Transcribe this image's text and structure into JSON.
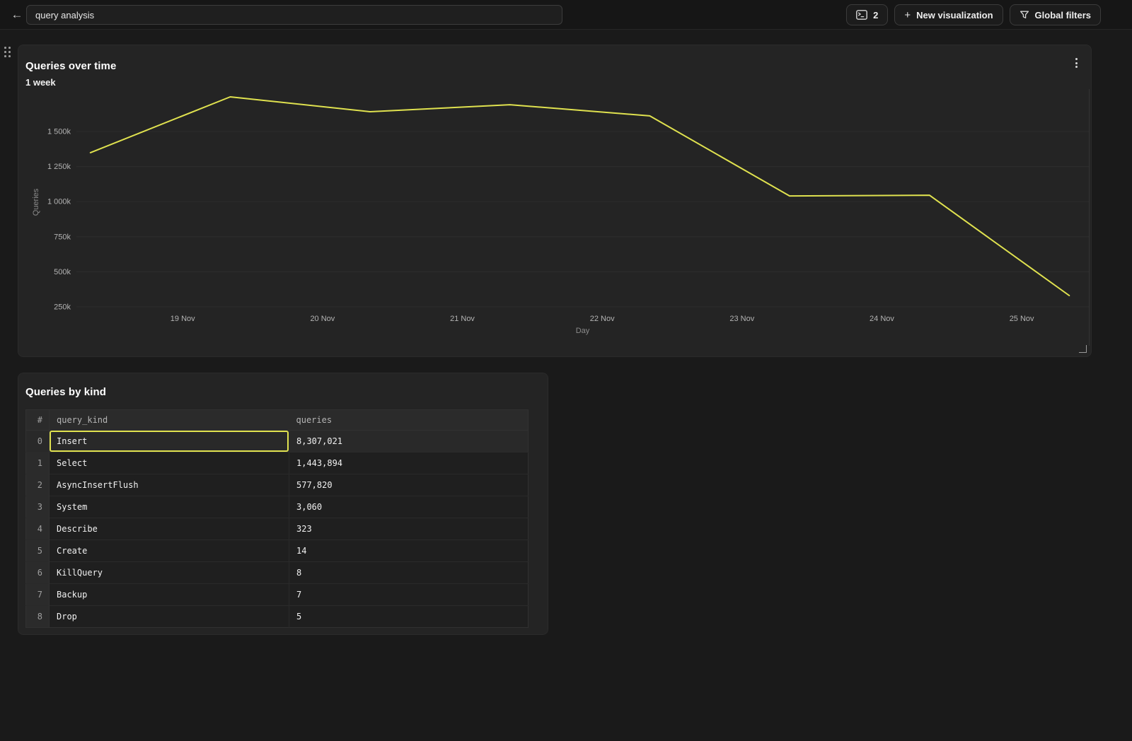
{
  "topbar": {
    "back_icon": "←",
    "title_input": {
      "value": "query analysis"
    },
    "tabs_button": {
      "count": "2",
      "icon": "terminal-window"
    },
    "new_visualization_button": {
      "icon": "+",
      "label": "New visualization"
    },
    "global_filters_button": {
      "icon": "funnel",
      "label": "Global filters"
    }
  },
  "chart_panel": {
    "title": "Queries over time",
    "subtitle": "1 week",
    "menu_icon": "kebab-vertical",
    "resize_handle": "bottom-right-corner"
  },
  "chart_data": {
    "type": "line",
    "title": "Queries over time",
    "subtitle": "1 week",
    "xlabel": "Day",
    "ylabel": "Queries",
    "grid": "horizontal-only",
    "legend": "none",
    "line_color": "#e0e24f",
    "x_unit": "day offset, 19 Nov = 1",
    "x_range": [
      0.24,
      7.48
    ],
    "y_range": [
      215000,
      1777000
    ],
    "x_ticks": [
      {
        "pos": 1,
        "label": "19 Nov"
      },
      {
        "pos": 2,
        "label": "20 Nov"
      },
      {
        "pos": 3,
        "label": "21 Nov"
      },
      {
        "pos": 4,
        "label": "22 Nov"
      },
      {
        "pos": 5,
        "label": "23 Nov"
      },
      {
        "pos": 6,
        "label": "24 Nov"
      },
      {
        "pos": 7,
        "label": "25 Nov"
      }
    ],
    "y_ticks": [
      {
        "value": 250000,
        "label": "250k"
      },
      {
        "value": 500000,
        "label": "500k"
      },
      {
        "value": 750000,
        "label": "750k"
      },
      {
        "value": 1000000,
        "label": "1 000k"
      },
      {
        "value": 1250000,
        "label": "1 250k"
      },
      {
        "value": 1500000,
        "label": "1 500k"
      }
    ],
    "series": [
      {
        "name": "Queries",
        "color": "#e0e24f",
        "x": [
          0.34,
          1.34,
          2.34,
          3.34,
          4.34,
          5.34,
          6.34,
          7.34
        ],
        "values": [
          1349000,
          1747000,
          1641000,
          1691000,
          1611000,
          1041000,
          1046000,
          331000
        ]
      }
    ]
  },
  "table_panel": {
    "title": "Queries by kind",
    "columns": [
      "#",
      "query_kind",
      "queries"
    ],
    "rows": [
      {
        "index": "0",
        "query_kind": "Insert",
        "queries": "8,307,021",
        "selected": true
      },
      {
        "index": "1",
        "query_kind": "Select",
        "queries": "1,443,894",
        "selected": false
      },
      {
        "index": "2",
        "query_kind": "AsyncInsertFlush",
        "queries": "577,820",
        "selected": false
      },
      {
        "index": "3",
        "query_kind": "System",
        "queries": "3,060",
        "selected": false
      },
      {
        "index": "4",
        "query_kind": "Describe",
        "queries": "323",
        "selected": false
      },
      {
        "index": "5",
        "query_kind": "Create",
        "queries": "14",
        "selected": false
      },
      {
        "index": "6",
        "query_kind": "KillQuery",
        "queries": "8",
        "selected": false
      },
      {
        "index": "7",
        "query_kind": "Backup",
        "queries": "7",
        "selected": false
      },
      {
        "index": "8",
        "query_kind": "Drop",
        "queries": "5",
        "selected": false
      }
    ]
  },
  "colors": {
    "accent": "#e0e24f",
    "panel_bg": "#242424",
    "page_bg": "#1a1a1a",
    "selection_border": "#e0e24f"
  }
}
